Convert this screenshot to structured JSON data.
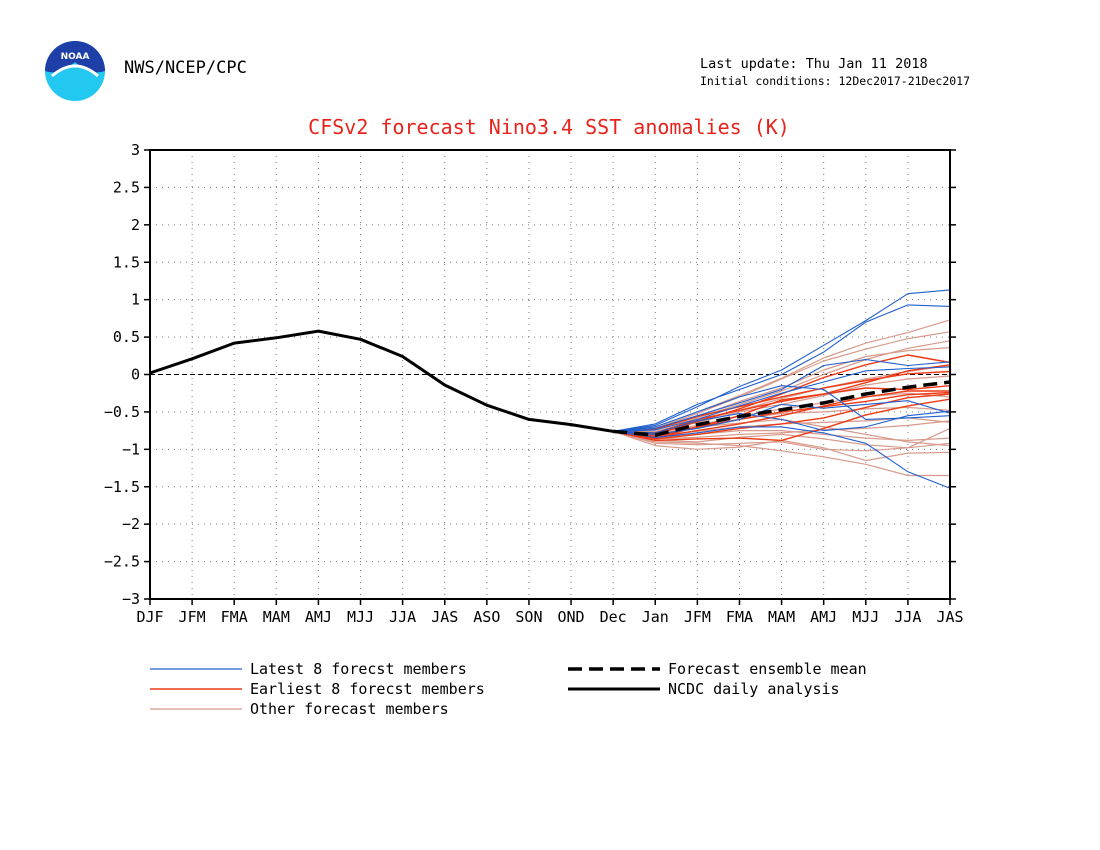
{
  "header": {
    "agency": "NWS/NCEP/CPC",
    "last_update": "Last update: Thu Jan 11 2018",
    "initial_conditions": "Initial conditions: 12Dec2017-21Dec2017",
    "logo_text": "NOAA"
  },
  "colors": {
    "title": "#e8231c",
    "latest": "#1f5fcf",
    "earliest": "#ee3a14",
    "other": "#d79a8c",
    "analysis": "#000000",
    "ensemble_mean": "#000000",
    "grid": "#7a7a7a"
  },
  "chart_data": {
    "type": "line",
    "title": "CFSv2 forecast Nino3.4 SST anomalies (K)",
    "categories": [
      "DJF",
      "JFM",
      "FMA",
      "MAM",
      "AMJ",
      "MJJ",
      "JJA",
      "JAS",
      "ASO",
      "SON",
      "OND",
      "Dec",
      "Jan",
      "JFM",
      "FMA",
      "MAM",
      "AMJ",
      "MJJ",
      "JJA",
      "JAS"
    ],
    "ylim": [
      -3,
      3
    ],
    "yticks": [
      3,
      2.5,
      2,
      1.5,
      1,
      0.5,
      0,
      -0.5,
      -1,
      -1.5,
      -2,
      -2.5,
      -3
    ],
    "ytick_labels": [
      "3",
      "2.5",
      "2",
      "1.5",
      "1",
      "0.5",
      "0",
      "−0.5",
      "−1",
      "−1.5",
      "−2",
      "−2.5",
      "−3"
    ],
    "grid": true,
    "legend_position": "bottom",
    "legend": [
      {
        "label": "Latest 8 forecst members",
        "style": "latest"
      },
      {
        "label": "Earliest 8 forecst members",
        "style": "earliest"
      },
      {
        "label": "Other forecast members",
        "style": "other"
      },
      {
        "label": "Forecast ensemble mean",
        "style": "mean"
      },
      {
        "label": "NCDC daily analysis",
        "style": "analysis"
      }
    ],
    "analysis": {
      "name": "NCDC daily analysis",
      "start_index": 0,
      "values": [
        0.02,
        0.21,
        0.42,
        0.49,
        0.58,
        0.47,
        0.24,
        -0.14,
        -0.41,
        -0.6,
        -0.67,
        -0.76
      ]
    },
    "ensemble_mean": {
      "name": "Forecast ensemble mean",
      "start_index": 11,
      "values": [
        -0.76,
        -0.81,
        -0.67,
        -0.56,
        -0.47,
        -0.38,
        -0.26,
        -0.17,
        -0.1
      ]
    },
    "members": {
      "start_index": 11,
      "latest": [
        [
          -0.76,
          -0.68,
          -0.43,
          -0.16,
          0.06,
          0.39,
          0.72,
          1.08,
          1.13
        ],
        [
          -0.76,
          -0.66,
          -0.4,
          -0.2,
          0.0,
          0.3,
          0.7,
          0.93,
          0.91
        ],
        [
          -0.76,
          -0.72,
          -0.55,
          -0.38,
          -0.2,
          0.12,
          0.2,
          0.12,
          0.17
        ],
        [
          -0.76,
          -0.8,
          -0.72,
          -0.6,
          -0.4,
          -0.45,
          -0.4,
          -0.35,
          -0.52
        ],
        [
          -0.76,
          -0.84,
          -0.78,
          -0.7,
          -0.7,
          -0.78,
          -0.92,
          -1.3,
          -1.52
        ],
        [
          -0.76,
          -0.7,
          -0.5,
          -0.3,
          -0.15,
          -0.2,
          -0.6,
          -0.58,
          -0.55
        ],
        [
          -0.76,
          -0.78,
          -0.62,
          -0.52,
          -0.6,
          -0.75,
          -0.7,
          -0.55,
          -0.49
        ],
        [
          -0.76,
          -0.74,
          -0.6,
          -0.42,
          -0.25,
          -0.1,
          0.05,
          0.08,
          0.1
        ]
      ],
      "earliest": [
        [
          -0.76,
          -0.82,
          -0.7,
          -0.55,
          -0.34,
          -0.26,
          -0.11,
          0.05,
          0.13
        ],
        [
          -0.76,
          -0.86,
          -0.8,
          -0.72,
          -0.66,
          -0.58,
          -0.44,
          -0.31,
          -0.26
        ],
        [
          -0.76,
          -0.8,
          -0.63,
          -0.46,
          -0.26,
          -0.04,
          0.13,
          0.26,
          0.16
        ],
        [
          -0.76,
          -0.84,
          -0.75,
          -0.66,
          -0.55,
          -0.42,
          -0.3,
          -0.22,
          -0.22
        ],
        [
          -0.76,
          -0.88,
          -0.86,
          -0.85,
          -0.88,
          -0.72,
          -0.54,
          -0.42,
          -0.33
        ],
        [
          -0.76,
          -0.73,
          -0.56,
          -0.43,
          -0.3,
          -0.18,
          -0.08,
          0.01,
          0.04
        ],
        [
          -0.76,
          -0.85,
          -0.7,
          -0.6,
          -0.5,
          -0.43,
          -0.36,
          -0.27,
          -0.24
        ],
        [
          -0.76,
          -0.78,
          -0.6,
          -0.48,
          -0.36,
          -0.26,
          -0.18,
          -0.2,
          -0.15
        ]
      ],
      "other": [
        [
          -0.76,
          -0.9,
          -0.92,
          -0.95,
          -1.02,
          -1.1,
          -1.2,
          -1.35,
          -1.35
        ],
        [
          -0.76,
          -0.95,
          -1.0,
          -0.97,
          -0.88,
          -0.98,
          -1.15,
          -1.05,
          -1.04
        ],
        [
          -0.76,
          -0.7,
          -0.5,
          -0.28,
          -0.05,
          0.22,
          0.42,
          0.56,
          0.73
        ],
        [
          -0.76,
          -0.72,
          -0.52,
          -0.3,
          -0.06,
          0.18,
          0.34,
          0.48,
          0.57
        ],
        [
          -0.76,
          -0.74,
          -0.58,
          -0.4,
          -0.22,
          0.0,
          0.2,
          0.35,
          0.45
        ],
        [
          -0.76,
          -0.8,
          -0.7,
          -0.65,
          -0.6,
          -0.7,
          -0.8,
          -0.9,
          -0.95
        ],
        [
          -0.76,
          -0.85,
          -0.8,
          -0.75,
          -0.75,
          -0.8,
          -0.85,
          -0.88,
          -0.85
        ],
        [
          -0.76,
          -0.82,
          -0.76,
          -0.7,
          -0.66,
          -0.64,
          -0.62,
          -0.58,
          -0.64
        ],
        [
          -0.76,
          -0.78,
          -0.68,
          -0.56,
          -0.46,
          -0.38,
          -0.3,
          -0.25,
          -0.3
        ],
        [
          -0.76,
          -0.76,
          -0.62,
          -0.48,
          -0.32,
          -0.18,
          -0.06,
          0.04,
          0.12
        ],
        [
          -0.76,
          -0.74,
          -0.56,
          -0.36,
          -0.18,
          0.06,
          0.24,
          0.32,
          0.36
        ],
        [
          -0.76,
          -0.88,
          -0.9,
          -0.84,
          -0.8,
          -0.86,
          -0.94,
          -0.98,
          -0.92
        ],
        [
          -0.76,
          -0.86,
          -0.84,
          -0.8,
          -0.78,
          -0.74,
          -0.72,
          -0.68,
          -0.62
        ],
        [
          -0.76,
          -0.8,
          -0.72,
          -0.6,
          -0.52,
          -0.5,
          -0.46,
          -0.44,
          -0.48
        ],
        [
          -0.76,
          -0.77,
          -0.64,
          -0.5,
          -0.4,
          -0.28,
          -0.14,
          -0.06,
          -0.02
        ],
        [
          -0.76,
          -0.92,
          -0.94,
          -0.92,
          -0.9,
          -1.0,
          -1.02,
          -0.98,
          -0.72
        ]
      ]
    }
  }
}
